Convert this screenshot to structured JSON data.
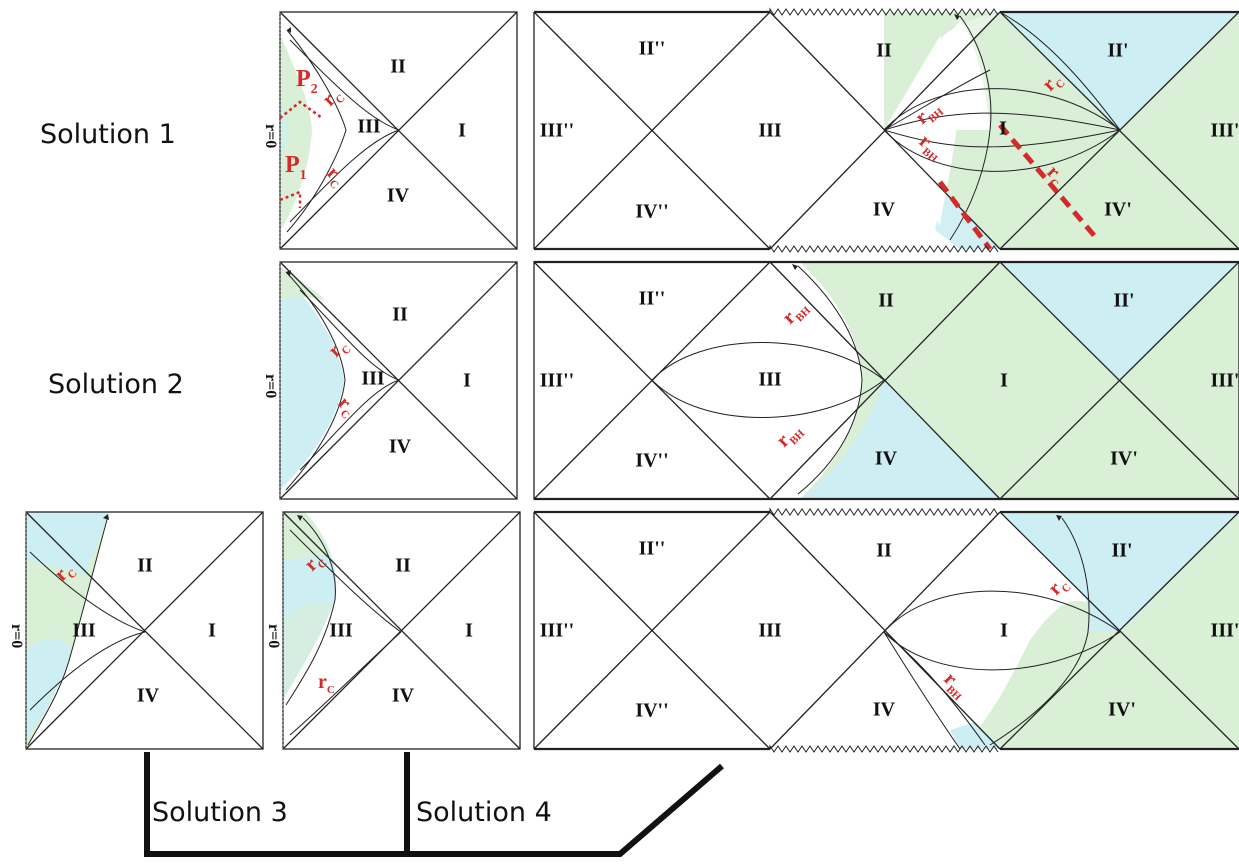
{
  "colors": {
    "green": "#d9efd6",
    "blue": "#cdeef2",
    "accent": "#d42a2a",
    "ink": "#111111"
  },
  "solutions": {
    "s1": "Solution 1",
    "s2": "Solution 2",
    "s3": "Solution 3",
    "s4": "Solution 4"
  },
  "r0": "r=0",
  "regions": {
    "I": "I",
    "II": "II",
    "III": "III",
    "IV": "IV",
    "II_p": "II'",
    "III_p": "III'",
    "IV_p": "IV'",
    "II_pp": "II''",
    "III_pp": "III''",
    "IV_pp": "IV''"
  },
  "radii": {
    "r": "r",
    "c": "C",
    "BH": "BH"
  },
  "points": {
    "P": "P",
    "p1": "1",
    "p2": "2"
  }
}
